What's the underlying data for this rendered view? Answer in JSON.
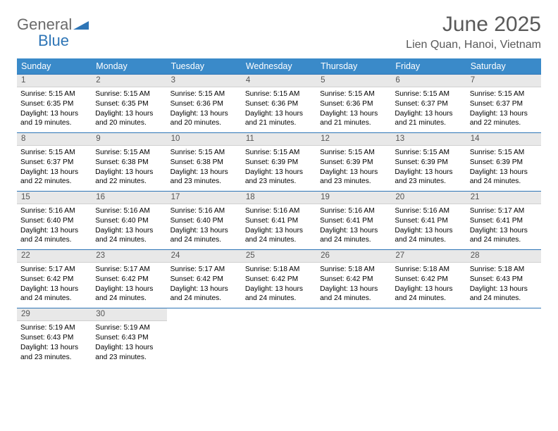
{
  "brand": {
    "name1": "General",
    "name2": "Blue"
  },
  "title": "June 2025",
  "location": "Lien Quan, Hanoi, Vietnam",
  "colors": {
    "header_bg": "#3a8ac9",
    "header_text": "#ffffff",
    "daynum_bg": "#e8e8e8",
    "daynum_border_top": "#2e75b6",
    "title_color": "#595959",
    "logo_gray": "#6a6a6a",
    "logo_blue": "#2e75b6"
  },
  "weekdays": [
    "Sunday",
    "Monday",
    "Tuesday",
    "Wednesday",
    "Thursday",
    "Friday",
    "Saturday"
  ],
  "weeks": [
    [
      {
        "day": "1",
        "sunrise": "5:15 AM",
        "sunset": "6:35 PM",
        "daylight": "13 hours and 19 minutes."
      },
      {
        "day": "2",
        "sunrise": "5:15 AM",
        "sunset": "6:35 PM",
        "daylight": "13 hours and 20 minutes."
      },
      {
        "day": "3",
        "sunrise": "5:15 AM",
        "sunset": "6:36 PM",
        "daylight": "13 hours and 20 minutes."
      },
      {
        "day": "4",
        "sunrise": "5:15 AM",
        "sunset": "6:36 PM",
        "daylight": "13 hours and 21 minutes."
      },
      {
        "day": "5",
        "sunrise": "5:15 AM",
        "sunset": "6:36 PM",
        "daylight": "13 hours and 21 minutes."
      },
      {
        "day": "6",
        "sunrise": "5:15 AM",
        "sunset": "6:37 PM",
        "daylight": "13 hours and 21 minutes."
      },
      {
        "day": "7",
        "sunrise": "5:15 AM",
        "sunset": "6:37 PM",
        "daylight": "13 hours and 22 minutes."
      }
    ],
    [
      {
        "day": "8",
        "sunrise": "5:15 AM",
        "sunset": "6:37 PM",
        "daylight": "13 hours and 22 minutes."
      },
      {
        "day": "9",
        "sunrise": "5:15 AM",
        "sunset": "6:38 PM",
        "daylight": "13 hours and 22 minutes."
      },
      {
        "day": "10",
        "sunrise": "5:15 AM",
        "sunset": "6:38 PM",
        "daylight": "13 hours and 23 minutes."
      },
      {
        "day": "11",
        "sunrise": "5:15 AM",
        "sunset": "6:39 PM",
        "daylight": "13 hours and 23 minutes."
      },
      {
        "day": "12",
        "sunrise": "5:15 AM",
        "sunset": "6:39 PM",
        "daylight": "13 hours and 23 minutes."
      },
      {
        "day": "13",
        "sunrise": "5:15 AM",
        "sunset": "6:39 PM",
        "daylight": "13 hours and 23 minutes."
      },
      {
        "day": "14",
        "sunrise": "5:15 AM",
        "sunset": "6:39 PM",
        "daylight": "13 hours and 24 minutes."
      }
    ],
    [
      {
        "day": "15",
        "sunrise": "5:16 AM",
        "sunset": "6:40 PM",
        "daylight": "13 hours and 24 minutes."
      },
      {
        "day": "16",
        "sunrise": "5:16 AM",
        "sunset": "6:40 PM",
        "daylight": "13 hours and 24 minutes."
      },
      {
        "day": "17",
        "sunrise": "5:16 AM",
        "sunset": "6:40 PM",
        "daylight": "13 hours and 24 minutes."
      },
      {
        "day": "18",
        "sunrise": "5:16 AM",
        "sunset": "6:41 PM",
        "daylight": "13 hours and 24 minutes."
      },
      {
        "day": "19",
        "sunrise": "5:16 AM",
        "sunset": "6:41 PM",
        "daylight": "13 hours and 24 minutes."
      },
      {
        "day": "20",
        "sunrise": "5:16 AM",
        "sunset": "6:41 PM",
        "daylight": "13 hours and 24 minutes."
      },
      {
        "day": "21",
        "sunrise": "5:17 AM",
        "sunset": "6:41 PM",
        "daylight": "13 hours and 24 minutes."
      }
    ],
    [
      {
        "day": "22",
        "sunrise": "5:17 AM",
        "sunset": "6:42 PM",
        "daylight": "13 hours and 24 minutes."
      },
      {
        "day": "23",
        "sunrise": "5:17 AM",
        "sunset": "6:42 PM",
        "daylight": "13 hours and 24 minutes."
      },
      {
        "day": "24",
        "sunrise": "5:17 AM",
        "sunset": "6:42 PM",
        "daylight": "13 hours and 24 minutes."
      },
      {
        "day": "25",
        "sunrise": "5:18 AM",
        "sunset": "6:42 PM",
        "daylight": "13 hours and 24 minutes."
      },
      {
        "day": "26",
        "sunrise": "5:18 AM",
        "sunset": "6:42 PM",
        "daylight": "13 hours and 24 minutes."
      },
      {
        "day": "27",
        "sunrise": "5:18 AM",
        "sunset": "6:42 PM",
        "daylight": "13 hours and 24 minutes."
      },
      {
        "day": "28",
        "sunrise": "5:18 AM",
        "sunset": "6:43 PM",
        "daylight": "13 hours and 24 minutes."
      }
    ],
    [
      {
        "day": "29",
        "sunrise": "5:19 AM",
        "sunset": "6:43 PM",
        "daylight": "13 hours and 23 minutes."
      },
      {
        "day": "30",
        "sunrise": "5:19 AM",
        "sunset": "6:43 PM",
        "daylight": "13 hours and 23 minutes."
      },
      null,
      null,
      null,
      null,
      null
    ]
  ],
  "labels": {
    "sunrise": "Sunrise:",
    "sunset": "Sunset:",
    "daylight": "Daylight:"
  }
}
